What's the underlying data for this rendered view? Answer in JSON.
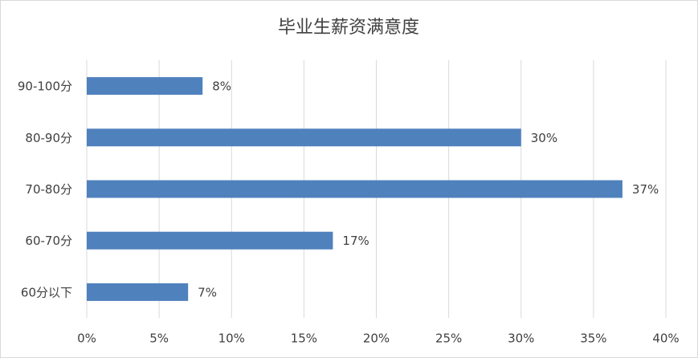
{
  "chart_data": {
    "type": "bar",
    "orientation": "horizontal",
    "title": "毕业生薪资满意度",
    "categories": [
      "90-100分",
      "80-90分",
      "70-80分",
      "60-70分",
      "60分以下"
    ],
    "values": [
      8,
      30,
      37,
      17,
      7
    ],
    "value_labels": [
      "8%",
      "30%",
      "37%",
      "17%",
      "7%"
    ],
    "color": "#4f81bd",
    "xlim": [
      0,
      40
    ],
    "xticks": [
      {
        "value": 0,
        "label": "0%"
      },
      {
        "value": 5,
        "label": "5%"
      },
      {
        "value": 10,
        "label": "10%"
      },
      {
        "value": 15,
        "label": "15%"
      },
      {
        "value": 20,
        "label": "20%"
      },
      {
        "value": 25,
        "label": "25%"
      },
      {
        "value": 30,
        "label": "30%"
      },
      {
        "value": 35,
        "label": "35%"
      },
      {
        "value": 40,
        "label": "40%"
      }
    ],
    "grid": true
  }
}
